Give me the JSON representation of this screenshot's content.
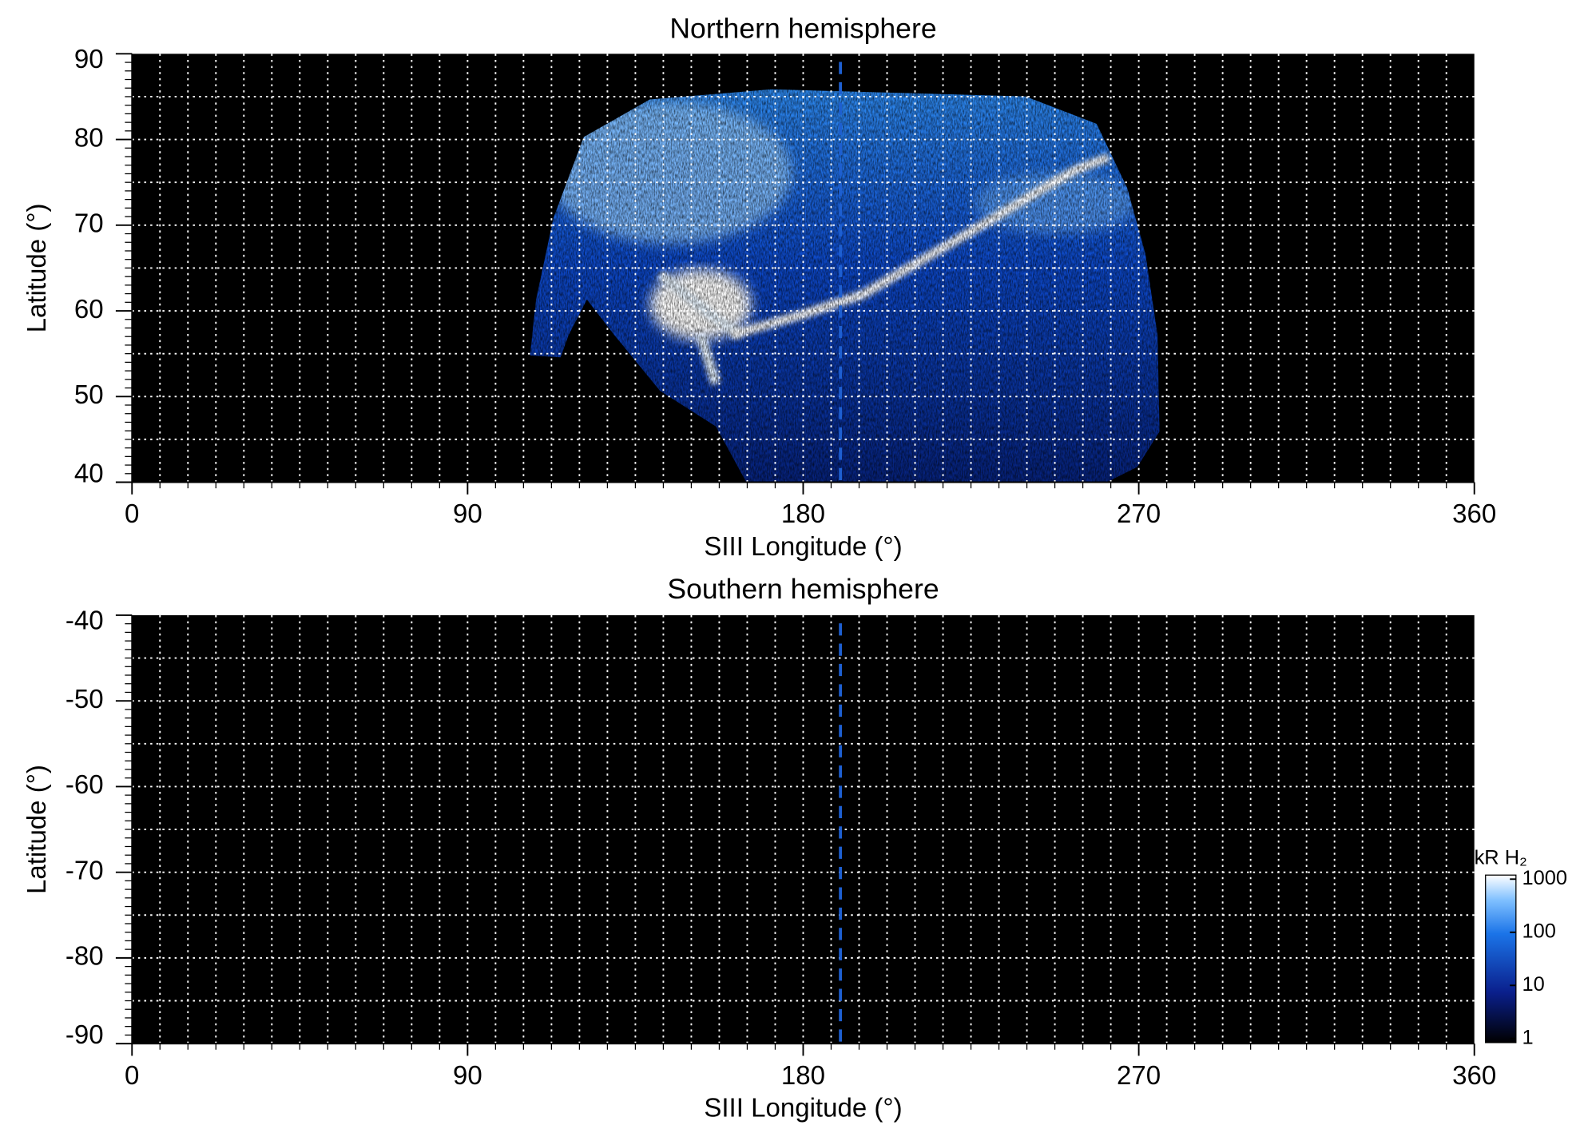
{
  "chart_data": [
    {
      "type": "heatmap",
      "title": "Northern hemisphere",
      "xlabel": "SIII Longitude (°)",
      "ylabel": "Latitude (°)",
      "xlim": [
        0,
        360
      ],
      "xticks": [
        0,
        90,
        180,
        270,
        360
      ],
      "ylim": [
        40,
        90
      ],
      "yticks": [
        40,
        50,
        60,
        70,
        80,
        90
      ],
      "grid": true,
      "xgrid_step": 7.5,
      "ygrid_step": 5,
      "yminor_step": 1,
      "reference_x": 190,
      "reference_color": "#1e5fd0"
    },
    {
      "type": "heatmap",
      "title": "Southern hemisphere",
      "xlabel": "SIII Longitude (°)",
      "ylabel": "Latitude (°)",
      "xlim": [
        0,
        360
      ],
      "xticks": [
        0,
        90,
        180,
        270,
        360
      ],
      "ylim": [
        -90,
        -40
      ],
      "yticks": [
        -90,
        -80,
        -70,
        -60,
        -50,
        -40
      ],
      "grid": true,
      "xgrid_step": 7.5,
      "ygrid_step": 5,
      "yminor_step": 1,
      "reference_x": 190,
      "reference_color": "#1e5fd0",
      "colorbar": {
        "title": "kR H₂",
        "log": true,
        "lim": [
          1,
          1000
        ],
        "ticks": [
          1,
          10,
          100,
          1000
        ]
      }
    }
  ]
}
